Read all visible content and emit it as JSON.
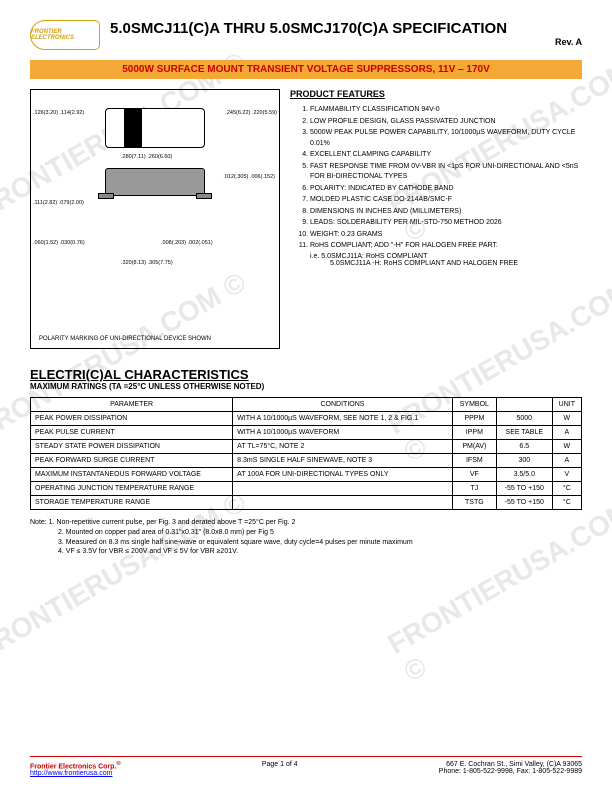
{
  "header": {
    "logo_text": "FRONTIER ELECTRONICS",
    "title": "5.0SMCJ11(C)A THRU 5.0SMCJ170(C)A SPECIFICATION",
    "rev": "Rev. A"
  },
  "banner": "5000W SURFACE MOUNT TRANSIENT VOLTAGE SUPPRESSORS, 11V – 170V",
  "features": {
    "heading": "PRODUCT FEATURES",
    "items": [
      "FLAMMABILITY CLASSIFICATION 94V-0",
      "LOW PROFILE DESIGN, GLASS PASSIVATED JUNCTION",
      "5000W PEAK PULSE POWER CAPABILITY, 10/1000µS WAVEFORM, DUTY CYCLE 0.01%",
      "EXCELLENT CLAMPING CAPABILITY",
      "FAST RESPONSE TIME FROM 0V-VBR IN <1pS FOR UNI-DIRECTIONAL AND <5nS FOR BI-DIRECTIONAL TYPES",
      "POLARITY: INDICATED BY CATHODE BAND",
      "MOLDED PLASTIC CASE DO-214AB/SMC-F",
      "DIMENSIONS IN INCHES AND (MILLIMETERS)",
      "LEADS: SOLDERABILITY PER MIL-STD-750 METHOD 2026",
      "WEIGHT: 0.23 GRAMS",
      "RoHS COMPLIANT;    ADD \"-H\" FOR HALOGEN FREE PART."
    ],
    "sub1": "i.e. 5.0SMCJ11A: RoHS COMPLIANT",
    "sub2": "5.0SMCJ11A -H: RoHS COMPLIANT AND HALOGEN FREE"
  },
  "diagram": {
    "dims": {
      "d1": ".126(3.20)\n.114(2.92)",
      "d2": ".245(6.22)\n.220(5.59)",
      "d3": ".280(7.11)\n.260(6.60)",
      "d4": ".012(.305)\n.006(.152)",
      "d5": ".111(2.82)\n.079(2.00)",
      "d6": ".060(1.52)\n.030(0.76)",
      "d7": ".008(.203)\n.002(.051)",
      "d8": ".320(8.13)\n.305(7.75)"
    },
    "polarity": "POLARITY MARKING OF UNI-DIRECTIONAL DEVICE SHOWN"
  },
  "elec": {
    "heading": "ELECTRI(C)AL CHARACTERISTICS",
    "sub": "MAXIMUM RATINGS (TA =25°C UNLESS OTHERWISE NOTED)",
    "columns": [
      "PARAMETER",
      "CONDITIONS",
      "SYMBOL",
      "",
      "UNIT"
    ],
    "rows": [
      [
        "PEAK POWER DISSIPATION",
        "WITH A 10/1000µS WAVEFORM, SEE NOTE 1, 2 & FIG.1",
        "PPPM",
        "5000",
        "W"
      ],
      [
        "PEAK PULSE CURRENT",
        "WITH A 10/1000µS WAVEFORM",
        "IPPM",
        "SEE TABLE",
        "A"
      ],
      [
        "STEADY STATE POWER DISSIPATION",
        "AT TL=75°C, NOTE 2",
        "PM(AV)",
        "6.5",
        "W"
      ],
      [
        "PEAK FORWARD SURGE CURRENT",
        "8.3mS SINGLE HALF SINEWAVE, NOTE 3",
        "IFSM",
        "300",
        "A"
      ],
      [
        "MAXIMUM INSTANTANEOUS FORWARD VOLTAGE",
        "AT 100A FOR UNI-DIRECTIONAL TYPES ONLY",
        "VF",
        "3.5/5.0",
        "V"
      ],
      [
        "OPERATING JUNCTION TEMPERATURE RANGE",
        "",
        "TJ",
        "-55 TO +150",
        "°C"
      ],
      [
        "STORAGE TEMPERATURE RANGE",
        "",
        "TSTG",
        "-55 TO +150",
        "°C"
      ]
    ]
  },
  "notes": [
    "Note: 1. Non-repetitive current pulse, per Fig. 3 and derated above T =25°C per Fig. 2",
    "2. Mounted on copper pad area of 0.31\"x0.31\" (8.0x8.0 mm) per Fig 5",
    "3. Measured on 8.3 ms single half sine-wave or equivalent square wave, duty cycle=4 pulses per minute maximum",
    "4. VF ≤ 3.5V for VBR  ≤ 200V and VF ≤ 5V for VBR  ≥201V."
  ],
  "footer": {
    "company": "Frontier Electronics Corp.",
    "url": "http://www.frontierusa.com",
    "page": "Page 1 of 4",
    "addr": "667 E. Cochran St., Simi Valley, (C)A 93065",
    "phone": "Phone: 1-805-522-9998, Fax: 1-805-522-9989"
  },
  "watermark": "FRONTIERUSA.COM ©"
}
